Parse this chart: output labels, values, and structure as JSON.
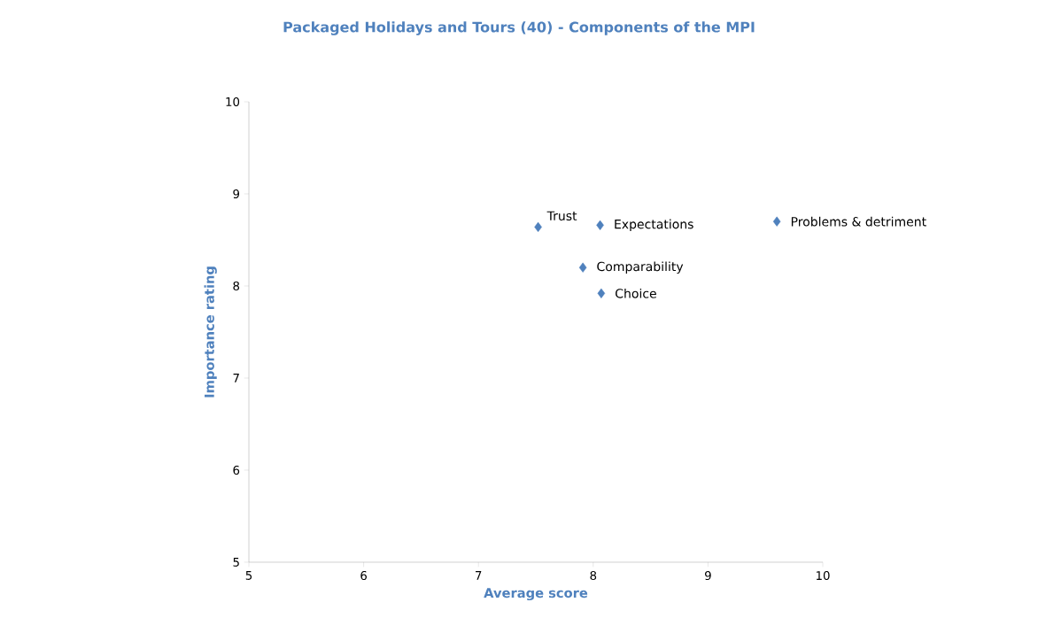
{
  "chart_data": {
    "type": "scatter",
    "title": "Packaged Holidays and Tours  (40) - Components of the MPI",
    "xlabel": "Average score",
    "ylabel": "Importance rating",
    "x": [
      7.52,
      8.06,
      9.6,
      7.91,
      8.07
    ],
    "values": [
      8.64,
      8.66,
      8.7,
      8.2,
      7.92
    ],
    "color": "#4f81bd",
    "marker": "diamond",
    "annotations": [
      {
        "text": "Trust",
        "x": 7.52,
        "y": 8.64
      },
      {
        "text": "Expectations",
        "x": 8.06,
        "y": 8.66
      },
      {
        "text": "Problems & detriment",
        "x": 9.6,
        "y": 8.7
      },
      {
        "text": "Comparability",
        "x": 7.91,
        "y": 8.2
      },
      {
        "text": "Choice",
        "x": 8.07,
        "y": 7.92
      }
    ],
    "xlim": [
      5,
      10
    ],
    "ylim": [
      5,
      10
    ],
    "xticks": [
      5,
      6,
      7,
      8,
      9,
      10
    ],
    "yticks": [
      5,
      6,
      7,
      8,
      9,
      10
    ],
    "grid": false
  }
}
